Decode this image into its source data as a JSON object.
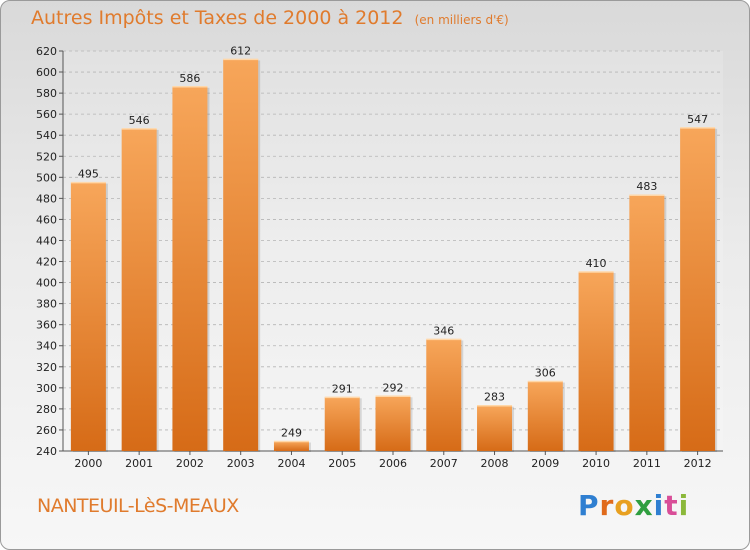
{
  "title": "Autres Impôts et Taxes de 2000 à 2012",
  "subtitle": "(en milliers d'€)",
  "commune": "NANTEUIL-LèS-MEAUX",
  "logo_text": "Proxiti",
  "colors": {
    "bar_light": "#f7a65a",
    "bar_dark": "#d66b17",
    "title": "#e07b2d"
  },
  "chart_data": {
    "type": "bar",
    "categories": [
      "2000",
      "2001",
      "2002",
      "2003",
      "2004",
      "2005",
      "2006",
      "2007",
      "2008",
      "2009",
      "2010",
      "2011",
      "2012"
    ],
    "values": [
      495,
      546,
      586,
      612,
      249,
      291,
      292,
      346,
      283,
      306,
      410,
      483,
      547
    ],
    "ylim": [
      240,
      620
    ],
    "yticks": [
      240,
      260,
      280,
      300,
      320,
      340,
      360,
      380,
      400,
      420,
      440,
      460,
      480,
      500,
      520,
      540,
      560,
      580,
      600,
      620
    ],
    "grid": true
  }
}
